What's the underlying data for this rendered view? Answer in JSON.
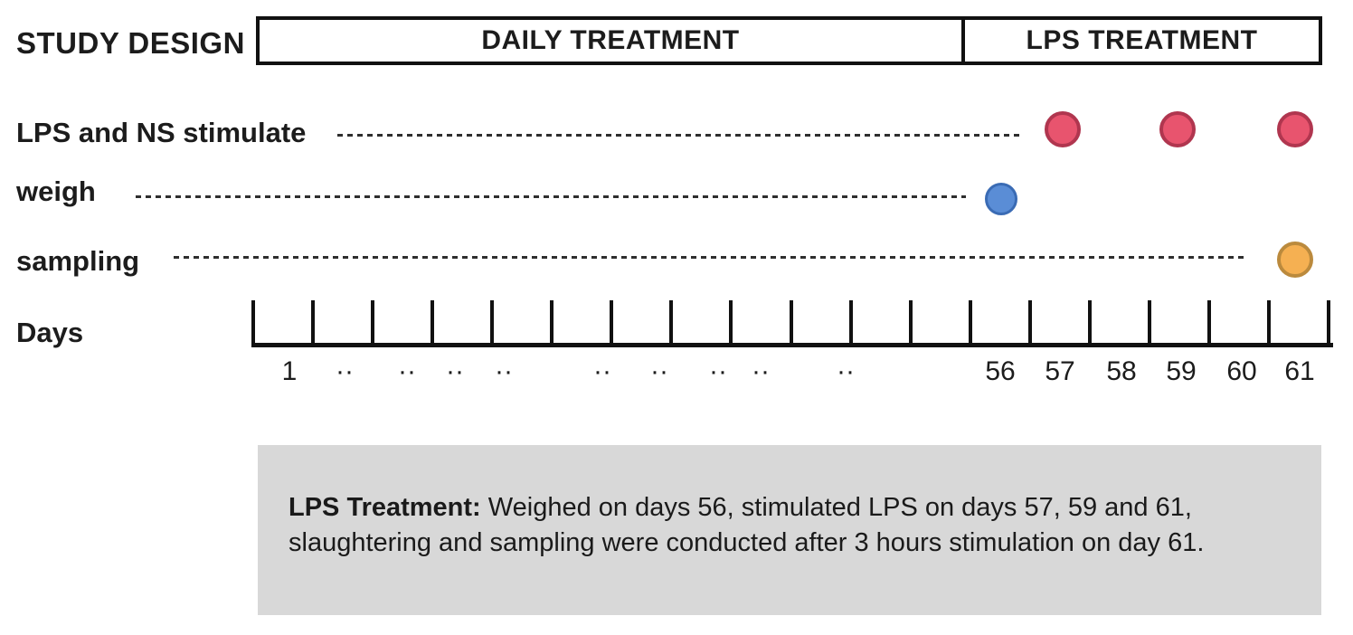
{
  "title": "STUDY DESIGN",
  "phase_bar": {
    "segments": [
      {
        "label": "DAILY TREATMENT"
      },
      {
        "label": "LPS TREATMENT"
      }
    ]
  },
  "rows": [
    {
      "label": "LPS and NS stimulate",
      "event_days": [
        57,
        59,
        61
      ],
      "marker_fill": "#e8546e",
      "marker_border": "#b0364f"
    },
    {
      "label": "weigh",
      "event_days": [
        56
      ],
      "marker_fill": "#5a8dd6",
      "marker_border": "#3a6bb4"
    },
    {
      "label": "sampling",
      "event_days": [
        61
      ],
      "marker_fill": "#f5b052",
      "marker_border": "#bb8a3d"
    }
  ],
  "axis": {
    "label": "Days",
    "tick_labels": [
      "1",
      "··",
      "··",
      "··",
      "··",
      "··",
      "··",
      "··",
      "··",
      "··",
      "56",
      "57",
      "58",
      "59",
      "60",
      "61"
    ]
  },
  "note": {
    "heading": "LPS Treatment:",
    "body": " Weighed on days 56, stimulated LPS on days 57, 59 and 61, slaughtering and sampling were conducted after 3 hours stimulation on day 61.",
    "background": "#d8d8d8"
  }
}
